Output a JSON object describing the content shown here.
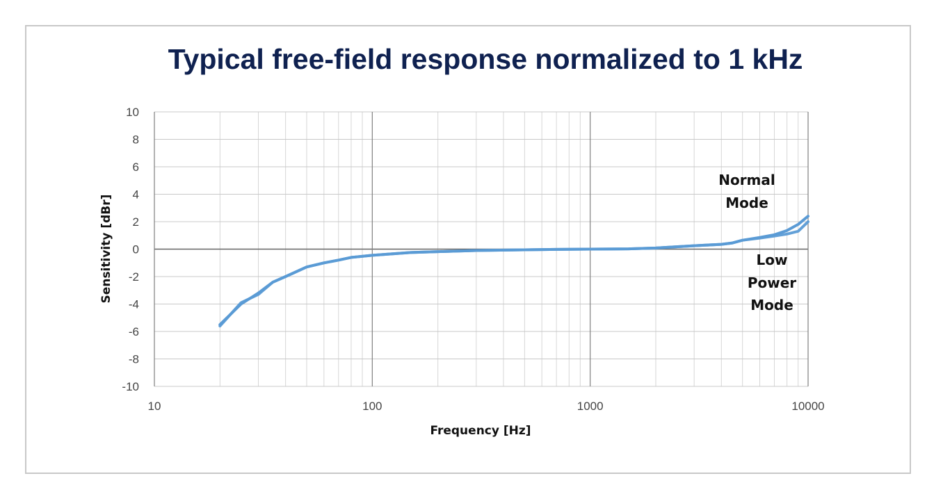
{
  "chart_data": {
    "type": "line",
    "title": "Typical free-field response normalized to 1 kHz",
    "xlabel": "Frequency [Hz]",
    "ylabel": "Sensitivity [dBr]",
    "x_scale": "log",
    "xlim": [
      10,
      10000
    ],
    "ylim": [
      -10,
      10
    ],
    "x_ticks": [
      "10",
      "100",
      "1000",
      "10000"
    ],
    "y_ticks": [
      "10",
      "8",
      "6",
      "4",
      "2",
      "0",
      "-2",
      "-4",
      "-6",
      "-8",
      "-10"
    ],
    "grid": true,
    "series": [
      {
        "name": "Normal Mode",
        "color": "#5b9bd5",
        "x": [
          20,
          25,
          30,
          35,
          40,
          50,
          60,
          70,
          80,
          100,
          150,
          200,
          300,
          500,
          700,
          1000,
          1500,
          2000,
          3000,
          4000,
          4500,
          5000,
          6000,
          7000,
          8000,
          9000,
          10000
        ],
        "y": [
          -5.5,
          -4.0,
          -3.2,
          -2.4,
          -2.0,
          -1.3,
          -1.0,
          -0.8,
          -0.6,
          -0.45,
          -0.25,
          -0.18,
          -0.1,
          -0.05,
          -0.02,
          0,
          0.02,
          0.08,
          0.25,
          0.35,
          0.45,
          0.65,
          0.85,
          1.05,
          1.35,
          1.8,
          2.4
        ]
      },
      {
        "name": "Low Power Mode",
        "color": "#5b9bd5",
        "x": [
          20,
          25,
          30,
          35,
          40,
          50,
          60,
          70,
          80,
          100,
          150,
          200,
          300,
          500,
          700,
          1000,
          1500,
          2000,
          3000,
          4000,
          4500,
          5000,
          6000,
          7000,
          8000,
          9000,
          10000
        ],
        "y": [
          -5.6,
          -3.9,
          -3.3,
          -2.4,
          -2.0,
          -1.3,
          -1.0,
          -0.8,
          -0.6,
          -0.45,
          -0.25,
          -0.18,
          -0.1,
          -0.05,
          -0.02,
          0,
          0.02,
          0.08,
          0.25,
          0.35,
          0.45,
          0.65,
          0.8,
          0.95,
          1.1,
          1.3,
          2.0
        ]
      }
    ],
    "annotations": {
      "normal_line1": "Normal",
      "normal_line2": "Mode",
      "low_line1": "Low",
      "low_line2": "Power",
      "low_line3": "Mode"
    }
  }
}
